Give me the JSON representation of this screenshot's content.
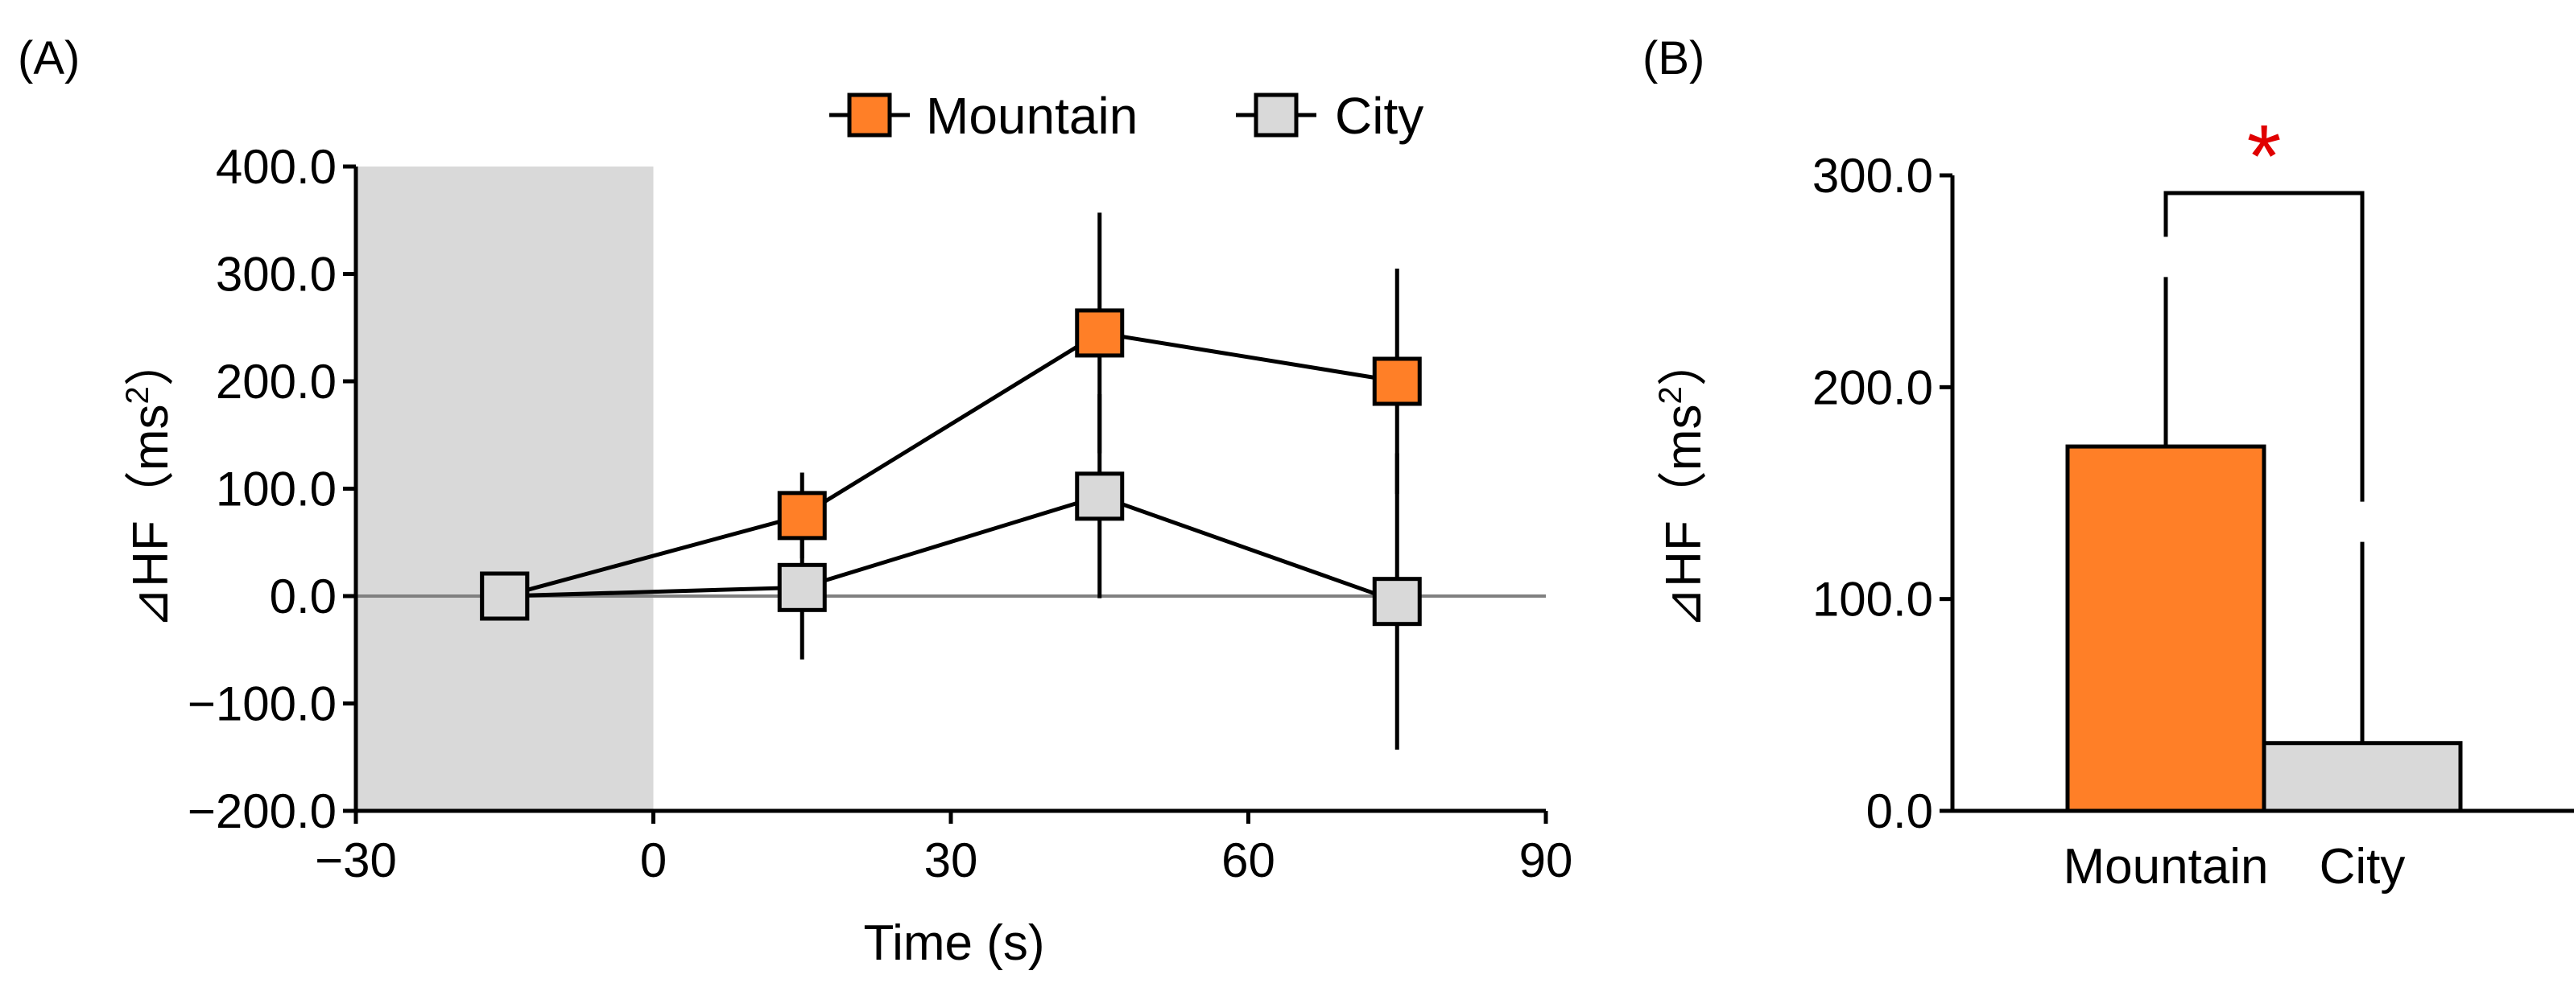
{
  "colors": {
    "mountain": "#FF7F27",
    "city": "#D9D9D9",
    "shade": "#D9D9D9",
    "zero_line": "#808080",
    "asterisk": "#E00000"
  },
  "chart_data": [
    {
      "panel_label": "(A)",
      "type": "line",
      "xlabel": "Time (s)",
      "ylabel": "⊿HF",
      "ylabel_unit_open": "（ms",
      "ylabel_unit_sup": "2",
      "ylabel_unit_close": "）",
      "xlim": [
        -30,
        90
      ],
      "ylim": [
        -200,
        400
      ],
      "xticks": [
        -30,
        0,
        30,
        60,
        90
      ],
      "xtick_labels": [
        "−30",
        "0",
        "30",
        "60",
        "90"
      ],
      "yticks": [
        -200,
        -100,
        0,
        100,
        200,
        300,
        400
      ],
      "ytick_labels": [
        "−200.0",
        "−100.0",
        "0.0",
        "100.0",
        "200.0",
        "300.0",
        "400.0"
      ],
      "shaded_region": [
        -30,
        0
      ],
      "legend": [
        "Mountain",
        "City"
      ],
      "series": [
        {
          "name": "Mountain",
          "x": [
            -15,
            15,
            45,
            75
          ],
          "values": [
            0,
            75,
            245,
            200
          ],
          "error": [
            0,
            40,
            112,
            105
          ]
        },
        {
          "name": "City",
          "x": [
            -15,
            15,
            45,
            75
          ],
          "values": [
            0,
            8,
            93,
            -5
          ],
          "error": [
            0,
            67,
            95,
            138
          ]
        }
      ]
    },
    {
      "panel_label": "(B)",
      "type": "bar",
      "categories": [
        "Mountain",
        "City"
      ],
      "values": [
        172,
        32
      ],
      "error": [
        80,
        95
      ],
      "ylabel": "⊿HF",
      "ylabel_unit_open": "（ms",
      "ylabel_unit_sup": "2",
      "ylabel_unit_close": "）",
      "ylim": [
        0,
        300
      ],
      "yticks": [
        0,
        100,
        200,
        300
      ],
      "ytick_labels": [
        "0.0",
        "100.0",
        "200.0",
        "300.0"
      ],
      "significance": "*"
    }
  ]
}
